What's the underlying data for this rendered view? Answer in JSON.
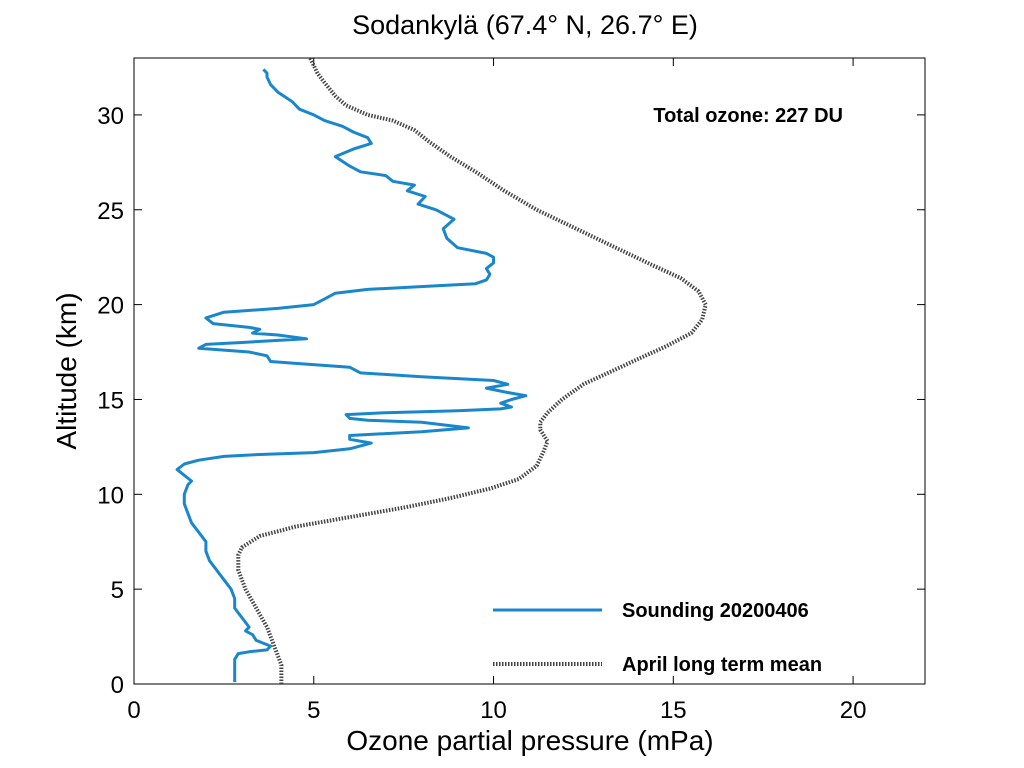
{
  "chart_data": {
    "type": "line",
    "title": "Sodankylä (67.4° N, 26.7° E)",
    "xlabel": "Ozone partial pressure (mPa)",
    "ylabel": "Altitude (km)",
    "xlim": [
      0,
      22
    ],
    "ylim": [
      0,
      33
    ],
    "xticks": [
      0,
      5,
      10,
      15,
      20
    ],
    "yticks": [
      0,
      5,
      10,
      15,
      20,
      25,
      30
    ],
    "grid": false,
    "legend_position": "bottom-right",
    "annotation": "Total ozone: 227 DU",
    "series": [
      {
        "name": "Sounding 20200406",
        "color": "#1a87cc",
        "style": "solid",
        "points": [
          [
            2.8,
            0.1
          ],
          [
            2.8,
            0.8
          ],
          [
            2.8,
            1.3
          ],
          [
            2.9,
            1.6
          ],
          [
            3.2,
            1.7
          ],
          [
            3.7,
            1.8
          ],
          [
            3.8,
            2.0
          ],
          [
            3.4,
            2.3
          ],
          [
            3.3,
            2.6
          ],
          [
            3.1,
            2.8
          ],
          [
            3.2,
            3.0
          ],
          [
            3.0,
            3.5
          ],
          [
            2.8,
            4.0
          ],
          [
            2.8,
            4.5
          ],
          [
            2.7,
            5.0
          ],
          [
            2.5,
            5.5
          ],
          [
            2.3,
            6.0
          ],
          [
            2.1,
            6.5
          ],
          [
            2.0,
            7.0
          ],
          [
            2.0,
            7.5
          ],
          [
            1.8,
            8.0
          ],
          [
            1.6,
            8.5
          ],
          [
            1.5,
            9.0
          ],
          [
            1.4,
            9.5
          ],
          [
            1.4,
            10.0
          ],
          [
            1.5,
            10.5
          ],
          [
            1.6,
            10.7
          ],
          [
            1.4,
            11.0
          ],
          [
            1.2,
            11.3
          ],
          [
            1.4,
            11.6
          ],
          [
            1.8,
            11.8
          ],
          [
            2.5,
            12.0
          ],
          [
            3.5,
            12.1
          ],
          [
            5.0,
            12.2
          ],
          [
            6.0,
            12.4
          ],
          [
            6.6,
            12.7
          ],
          [
            6.0,
            12.9
          ],
          [
            6.0,
            13.1
          ],
          [
            7.0,
            13.2
          ],
          [
            8.0,
            13.3
          ],
          [
            9.3,
            13.5
          ],
          [
            8.0,
            13.8
          ],
          [
            6.5,
            13.9
          ],
          [
            6.0,
            14.0
          ],
          [
            5.9,
            14.2
          ],
          [
            7.0,
            14.3
          ],
          [
            9.0,
            14.4
          ],
          [
            10.2,
            14.5
          ],
          [
            10.5,
            14.6
          ],
          [
            10.2,
            14.8
          ],
          [
            10.5,
            15.0
          ],
          [
            10.9,
            15.2
          ],
          [
            10.3,
            15.4
          ],
          [
            9.8,
            15.6
          ],
          [
            10.4,
            15.8
          ],
          [
            10.0,
            16.0
          ],
          [
            8.0,
            16.2
          ],
          [
            6.3,
            16.4
          ],
          [
            6.0,
            16.7
          ],
          [
            4.5,
            16.9
          ],
          [
            3.8,
            17.0
          ],
          [
            3.7,
            17.3
          ],
          [
            3.2,
            17.5
          ],
          [
            2.5,
            17.6
          ],
          [
            1.8,
            17.7
          ],
          [
            2.0,
            17.9
          ],
          [
            3.0,
            18.0
          ],
          [
            4.8,
            18.2
          ],
          [
            4.0,
            18.4
          ],
          [
            3.3,
            18.5
          ],
          [
            3.5,
            18.7
          ],
          [
            3.2,
            18.8
          ],
          [
            2.2,
            19.0
          ],
          [
            2.0,
            19.3
          ],
          [
            2.5,
            19.6
          ],
          [
            4.0,
            19.8
          ],
          [
            5.0,
            20.0
          ],
          [
            5.3,
            20.3
          ],
          [
            5.6,
            20.6
          ],
          [
            6.5,
            20.8
          ],
          [
            8.5,
            21.0
          ],
          [
            9.5,
            21.1
          ],
          [
            9.8,
            21.3
          ],
          [
            9.9,
            21.6
          ],
          [
            9.8,
            21.9
          ],
          [
            10.0,
            22.2
          ],
          [
            10.0,
            22.5
          ],
          [
            9.8,
            22.7
          ],
          [
            9.0,
            23.0
          ],
          [
            8.7,
            23.5
          ],
          [
            8.6,
            24.0
          ],
          [
            8.9,
            24.5
          ],
          [
            8.4,
            25.0
          ],
          [
            7.9,
            25.3
          ],
          [
            8.1,
            25.7
          ],
          [
            7.6,
            26.0
          ],
          [
            7.8,
            26.3
          ],
          [
            7.2,
            26.5
          ],
          [
            7.0,
            26.8
          ],
          [
            6.3,
            27.0
          ],
          [
            6.0,
            27.3
          ],
          [
            5.6,
            27.8
          ],
          [
            6.1,
            28.2
          ],
          [
            6.6,
            28.5
          ],
          [
            6.5,
            28.8
          ],
          [
            6.1,
            29.1
          ],
          [
            5.8,
            29.4
          ],
          [
            5.3,
            29.7
          ],
          [
            5.0,
            30.0
          ],
          [
            4.6,
            30.3
          ],
          [
            4.4,
            30.7
          ],
          [
            4.0,
            31.2
          ],
          [
            3.8,
            31.6
          ],
          [
            3.7,
            32.0
          ],
          [
            3.7,
            32.2
          ],
          [
            3.6,
            32.4
          ]
        ]
      },
      {
        "name": "April long term mean",
        "color": "#444444",
        "style": "dotted",
        "points": [
          [
            4.1,
            0.0
          ],
          [
            4.1,
            0.5
          ],
          [
            4.1,
            1.0
          ],
          [
            3.9,
            2.0
          ],
          [
            3.7,
            3.0
          ],
          [
            3.4,
            4.0
          ],
          [
            3.1,
            5.0
          ],
          [
            2.9,
            6.0
          ],
          [
            2.9,
            6.8
          ],
          [
            3.0,
            7.2
          ],
          [
            3.5,
            7.8
          ],
          [
            4.5,
            8.3
          ],
          [
            6.0,
            8.8
          ],
          [
            7.5,
            9.3
          ],
          [
            8.8,
            9.8
          ],
          [
            9.9,
            10.3
          ],
          [
            10.7,
            10.8
          ],
          [
            11.2,
            11.5
          ],
          [
            11.4,
            12.3
          ],
          [
            11.5,
            12.8
          ],
          [
            11.3,
            13.4
          ],
          [
            11.3,
            13.8
          ],
          [
            11.5,
            14.3
          ],
          [
            11.9,
            15.0
          ],
          [
            12.5,
            15.8
          ],
          [
            13.3,
            16.5
          ],
          [
            14.1,
            17.2
          ],
          [
            14.8,
            17.8
          ],
          [
            15.5,
            18.5
          ],
          [
            15.8,
            19.2
          ],
          [
            15.9,
            20.0
          ],
          [
            15.7,
            20.7
          ],
          [
            15.2,
            21.4
          ],
          [
            14.4,
            22.1
          ],
          [
            13.4,
            23.0
          ],
          [
            12.3,
            24.0
          ],
          [
            11.2,
            25.0
          ],
          [
            10.3,
            26.0
          ],
          [
            9.5,
            27.0
          ],
          [
            8.8,
            27.8
          ],
          [
            8.2,
            28.6
          ],
          [
            7.8,
            29.2
          ],
          [
            7.2,
            29.7
          ],
          [
            6.5,
            30.0
          ],
          [
            5.9,
            30.5
          ],
          [
            5.6,
            31.0
          ],
          [
            5.3,
            31.7
          ],
          [
            5.1,
            32.2
          ],
          [
            5.0,
            32.6
          ],
          [
            4.9,
            33.0
          ]
        ]
      }
    ]
  }
}
